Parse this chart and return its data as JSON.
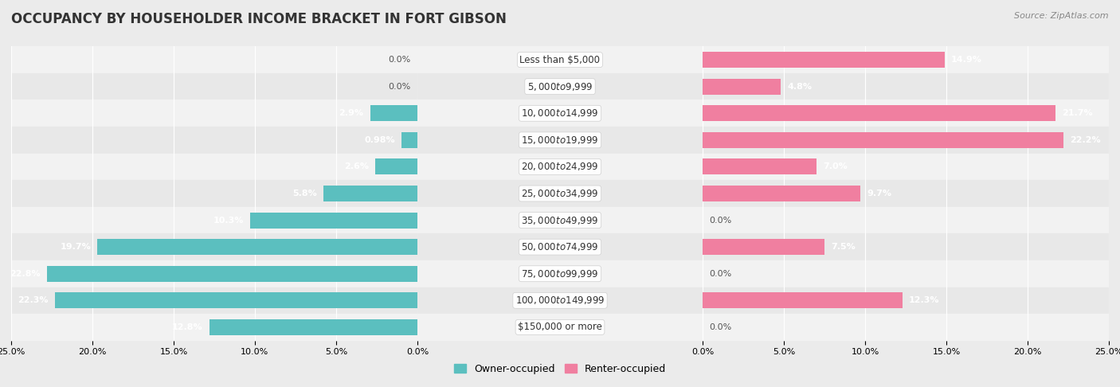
{
  "title": "OCCUPANCY BY HOUSEHOLDER INCOME BRACKET IN FORT GIBSON",
  "source": "Source: ZipAtlas.com",
  "categories": [
    "Less than $5,000",
    "$5,000 to $9,999",
    "$10,000 to $14,999",
    "$15,000 to $19,999",
    "$20,000 to $24,999",
    "$25,000 to $34,999",
    "$35,000 to $49,999",
    "$50,000 to $74,999",
    "$75,000 to $99,999",
    "$100,000 to $149,999",
    "$150,000 or more"
  ],
  "owner_values": [
    0.0,
    0.0,
    2.9,
    0.98,
    2.6,
    5.8,
    10.3,
    19.7,
    22.8,
    22.3,
    12.8
  ],
  "renter_values": [
    14.9,
    4.8,
    21.7,
    22.2,
    7.0,
    9.7,
    0.0,
    7.5,
    0.0,
    12.3,
    0.0
  ],
  "owner_color": "#5BBFBF",
  "renter_color": "#F07FA0",
  "owner_label": "Owner-occupied",
  "renter_label": "Renter-occupied",
  "xlim": 25.0,
  "title_fontsize": 12,
  "label_fontsize": 8.5,
  "value_fontsize": 8,
  "source_fontsize": 8,
  "bar_height": 0.6,
  "row_colors": [
    "#f2f2f2",
    "#e8e8e8"
  ]
}
